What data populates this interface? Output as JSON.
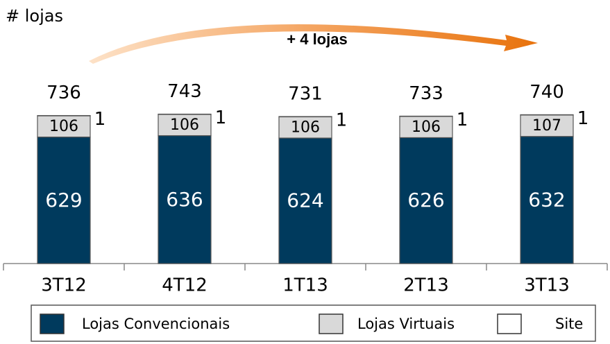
{
  "chart_data": {
    "type": "stacked-bar",
    "title": "# lojas",
    "annotation": "+ 4 lojas",
    "categories": [
      "3T12",
      "4T12",
      "1T13",
      "2T13",
      "3T13"
    ],
    "series": [
      {
        "name": "Lojas Convencionais",
        "color": "#003a5d",
        "values": [
          629,
          636,
          624,
          626,
          632
        ]
      },
      {
        "name": "Lojas Virtuais",
        "color": "#d9d9d9",
        "values": [
          106,
          106,
          106,
          106,
          107
        ]
      },
      {
        "name": "Site",
        "color": "#ffffff",
        "values": [
          1,
          1,
          1,
          1,
          1
        ]
      }
    ],
    "totals": [
      736,
      743,
      731,
      733,
      740
    ],
    "ylim": [
      0,
      800
    ]
  }
}
